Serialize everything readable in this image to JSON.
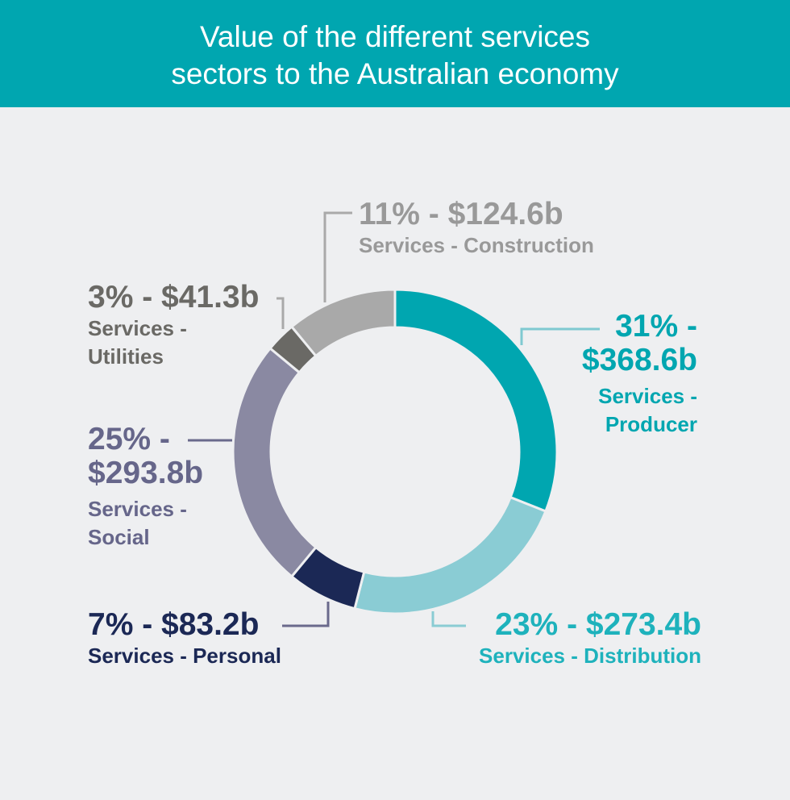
{
  "chart_data": {
    "type": "pie",
    "variant": "donut",
    "title_lines": [
      "Value of the different services",
      "sectors to the Australian economy"
    ],
    "start": "top",
    "direction": "clockwise",
    "slices": [
      {
        "name": "Services - Producer",
        "percent": 31,
        "value_label": "$368.6b",
        "value": 368.6,
        "color": "#00A6B0",
        "label_color": "#00A6B0",
        "line1": "31% -",
        "line2": "$368.6b",
        "line3": "Services -",
        "line4": "Producer"
      },
      {
        "name": "Services - Distribution",
        "percent": 23,
        "value_label": "$273.4b",
        "value": 273.4,
        "color": "#8ACCD4",
        "label_color": "#1EB2BC",
        "line1": "23% - $273.4b",
        "line3": "Services - Distribution"
      },
      {
        "name": "Services - Personal",
        "percent": 7,
        "value_label": "$83.2b",
        "value": 83.2,
        "color": "#1B2855",
        "label_color": "#1B2855",
        "line1": "7% - $83.2b",
        "line3": "Services - Personal"
      },
      {
        "name": "Services - Social",
        "percent": 25,
        "value_label": "$293.8b",
        "value": 293.8,
        "color": "#8A89A2",
        "label_color": "#66668A",
        "line1": "25% -",
        "line2": "$293.8b",
        "line3": "Services -",
        "line4": "Social"
      },
      {
        "name": "Services - Utilities",
        "percent": 3,
        "value_label": "$41.3b",
        "value": 41.3,
        "color": "#6A6965",
        "label_color": "#6A6965",
        "line1": "3% - $41.3b",
        "line3": "Services -",
        "line4": "Utilities"
      },
      {
        "name": "Services - Construction",
        "percent": 11,
        "value_label": "$124.6b",
        "value": 124.6,
        "color": "#A9A9A9",
        "label_color": "#999999",
        "line1": "11% - $124.6b",
        "line3": "Services - Construction"
      }
    ],
    "colors": {
      "header": "#00A6B0",
      "background": "#EEEFF1"
    }
  }
}
